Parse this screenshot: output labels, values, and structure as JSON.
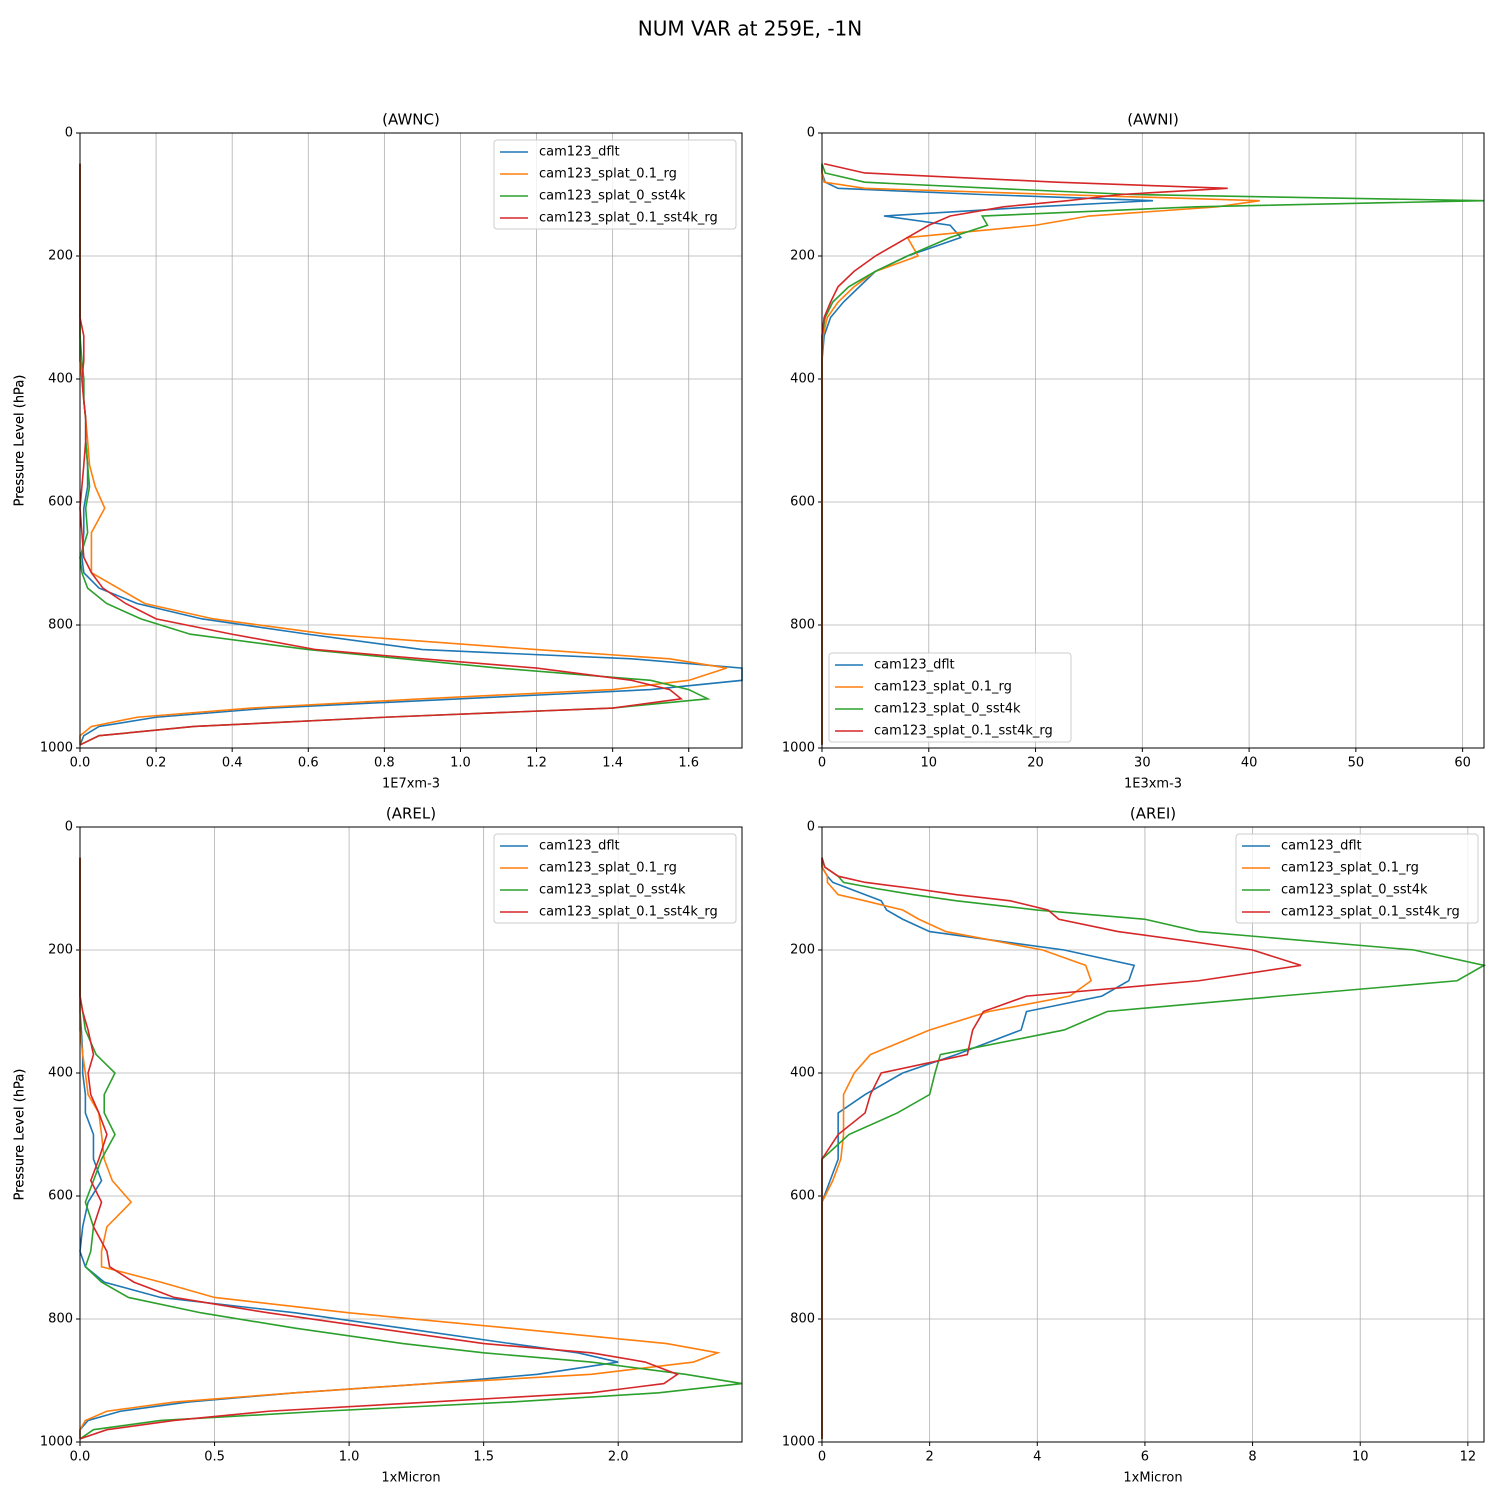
{
  "title": "NUM VAR at 259E, -1N",
  "chart_data": [
    {
      "type": "line",
      "title": "(AWNC)",
      "x_label": "1E7xm-3",
      "y_label": "Pressure Level (hPa)",
      "xlim": [
        0,
        1.74
      ],
      "ylim": [
        1000,
        0
      ],
      "xticks": [
        {
          "value": 0,
          "label": "0.0"
        },
        0.2,
        0.4,
        0.6,
        0.8,
        {
          "value": 1,
          "label": "1.0"
        },
        1.2,
        1.4,
        1.6
      ],
      "yticks": [
        0,
        200,
        400,
        600,
        800,
        1000
      ],
      "grid": true,
      "legend": "upper right",
      "y": [
        50,
        65,
        80,
        90,
        100,
        110,
        120,
        135,
        150,
        170,
        200,
        225,
        250,
        275,
        300,
        330,
        370,
        400,
        435,
        465,
        500,
        540,
        575,
        610,
        650,
        690,
        715,
        740,
        765,
        790,
        815,
        840,
        855,
        870,
        890,
        905,
        920,
        935,
        950,
        965,
        980,
        995
      ],
      "series": [
        {
          "name": "cam123_dflt",
          "color": "#1f77b4",
          "values": [
            0,
            0,
            0,
            0,
            0,
            0,
            0,
            0,
            0,
            0,
            0,
            0,
            0,
            0,
            0,
            0,
            0,
            0.01,
            0.01,
            0.015,
            0.015,
            0.02,
            0.02,
            0.01,
            0.01,
            0.005,
            0.01,
            0.05,
            0.15,
            0.32,
            0.6,
            0.9,
            1.45,
            1.74,
            1.74,
            1.5,
            1.0,
            0.5,
            0.2,
            0.05,
            0.01,
            0
          ]
        },
        {
          "name": "cam123_splat_0.1_rg",
          "color": "#ff7f0e",
          "values": [
            0,
            0,
            0,
            0,
            0,
            0,
            0,
            0,
            0,
            0,
            0,
            0,
            0,
            0,
            0,
            0,
            0,
            0.005,
            0.01,
            0.015,
            0.02,
            0.025,
            0.04,
            0.065,
            0.03,
            0.03,
            0.03,
            0.1,
            0.17,
            0.35,
            0.65,
            1.2,
            1.55,
            1.7,
            1.6,
            1.4,
            0.9,
            0.45,
            0.15,
            0.03,
            0,
            0
          ]
        },
        {
          "name": "cam123_splat_0_sst4k",
          "color": "#2ca02c",
          "values": [
            0,
            0,
            0,
            0,
            0,
            0,
            0,
            0,
            0,
            0,
            0,
            0,
            0,
            0,
            0,
            0,
            0.005,
            0.01,
            0.01,
            0.015,
            0.015,
            0.02,
            0.025,
            0.015,
            0.02,
            0,
            0.005,
            0.02,
            0.07,
            0.16,
            0.29,
            0.6,
            0.85,
            1.1,
            1.5,
            1.6,
            1.65,
            1.4,
            0.8,
            0.3,
            0.05,
            0
          ]
        },
        {
          "name": "cam123_splat_0.1_sst4k_rg",
          "color": "#d62728",
          "values": [
            0,
            0,
            0,
            0,
            0,
            0,
            0,
            0,
            0,
            0,
            0,
            0,
            0,
            0,
            0,
            0.01,
            0.01,
            0.005,
            0.01,
            0.015,
            0.015,
            0.01,
            0.005,
            0,
            0.005,
            0.01,
            0.03,
            0.06,
            0.12,
            0.2,
            0.4,
            0.62,
            0.9,
            1.2,
            1.45,
            1.55,
            1.58,
            1.4,
            0.8,
            0.3,
            0.05,
            0
          ]
        }
      ]
    },
    {
      "type": "line",
      "title": "(AWNI)",
      "x_label": "1E3xm-3",
      "y_label": "Pressure Level (hPa)",
      "xlim": [
        0,
        62
      ],
      "ylim": [
        1000,
        0
      ],
      "xticks": [
        0,
        10,
        20,
        30,
        40,
        50,
        60
      ],
      "yticks": [
        0,
        200,
        400,
        600,
        800,
        1000
      ],
      "grid": true,
      "legend": "lower left",
      "y": [
        50,
        65,
        80,
        90,
        100,
        110,
        120,
        135,
        150,
        170,
        200,
        225,
        250,
        275,
        300,
        330,
        370,
        400,
        435,
        465,
        500,
        540,
        575,
        610,
        650,
        690,
        715,
        740,
        765,
        790,
        815,
        840,
        855,
        870,
        890,
        905,
        920,
        935,
        950,
        965,
        980,
        995
      ],
      "series": [
        {
          "name": "cam123_dflt",
          "color": "#1f77b4",
          "values": [
            0,
            0,
            0.3,
            1.5,
            15,
            31,
            20,
            5.8,
            12,
            13,
            8,
            5,
            3.5,
            2,
            0.8,
            0.2,
            0,
            0,
            0,
            0,
            0,
            0,
            0,
            0,
            0,
            0,
            0,
            0,
            0,
            0,
            0,
            0,
            0,
            0,
            0,
            0,
            0,
            0,
            0,
            0,
            0,
            0
          ]
        },
        {
          "name": "cam123_splat_0.1_rg",
          "color": "#ff7f0e",
          "values": [
            0,
            0,
            0.2,
            4,
            22,
            41,
            37,
            25,
            20,
            8,
            9,
            5,
            3,
            1.5,
            0.5,
            0.1,
            0,
            0,
            0,
            0,
            0,
            0,
            0,
            0,
            0,
            0,
            0,
            0,
            0,
            0,
            0,
            0,
            0,
            0,
            0,
            0,
            0,
            0,
            0,
            0,
            0,
            0
          ]
        },
        {
          "name": "cam123_splat_0_sst4k",
          "color": "#2ca02c",
          "values": [
            0,
            0.3,
            4,
            16,
            29,
            62,
            35,
            15,
            15.5,
            12,
            8,
            5,
            2.5,
            1,
            0.3,
            0,
            0,
            0,
            0,
            0,
            0,
            0,
            0,
            0,
            0,
            0,
            0,
            0,
            0,
            0,
            0,
            0,
            0,
            0,
            0,
            0,
            0,
            0,
            0,
            0,
            0,
            0
          ]
        },
        {
          "name": "cam123_splat_0.1_sst4k_rg",
          "color": "#d62728",
          "values": [
            0.2,
            4,
            22,
            38,
            28,
            23,
            17,
            12,
            10,
            8,
            5,
            3,
            1.5,
            0.8,
            0.2,
            0,
            0,
            0,
            0,
            0,
            0,
            0,
            0,
            0,
            0,
            0,
            0,
            0,
            0,
            0,
            0,
            0,
            0,
            0,
            0,
            0,
            0,
            0,
            0,
            0,
            0,
            0
          ]
        }
      ]
    },
    {
      "type": "line",
      "title": "(AREL)",
      "x_label": "1xMicron",
      "y_label": "Pressure Level (hPa)",
      "xlim": [
        0,
        2.46
      ],
      "ylim": [
        1000,
        0
      ],
      "xticks": [
        {
          "value": 0,
          "label": "0.0"
        },
        0.5,
        {
          "value": 1,
          "label": "1.0"
        },
        1.5,
        {
          "value": 2,
          "label": "2.0"
        }
      ],
      "yticks": [
        0,
        200,
        400,
        600,
        800,
        1000
      ],
      "grid": true,
      "legend": "upper right",
      "y": [
        50,
        65,
        80,
        90,
        100,
        110,
        120,
        135,
        150,
        170,
        200,
        225,
        250,
        275,
        300,
        330,
        370,
        400,
        435,
        465,
        500,
        540,
        575,
        610,
        650,
        690,
        715,
        740,
        765,
        790,
        815,
        840,
        855,
        870,
        890,
        905,
        920,
        935,
        950,
        965,
        980,
        995
      ],
      "series": [
        {
          "name": "cam123_dflt",
          "color": "#1f77b4",
          "values": [
            0,
            0,
            0,
            0,
            0,
            0,
            0,
            0,
            0,
            0,
            0,
            0,
            0,
            0,
            0,
            0.005,
            0.01,
            0.01,
            0.02,
            0.02,
            0.05,
            0.05,
            0.08,
            0.03,
            0.01,
            0,
            0.02,
            0.09,
            0.3,
            0.8,
            1.2,
            1.6,
            1.85,
            2.0,
            1.7,
            1.3,
            0.8,
            0.4,
            0.15,
            0.03,
            0,
            0
          ]
        },
        {
          "name": "cam123_splat_0.1_rg",
          "color": "#ff7f0e",
          "values": [
            0,
            0,
            0,
            0,
            0,
            0,
            0,
            0,
            0,
            0,
            0,
            0,
            0,
            0,
            0,
            0,
            0.01,
            0.02,
            0.03,
            0.07,
            0.08,
            0.09,
            0.12,
            0.19,
            0.1,
            0.08,
            0.08,
            0.3,
            0.5,
            1.0,
            1.6,
            2.18,
            2.37,
            2.28,
            1.9,
            1.3,
            0.8,
            0.35,
            0.1,
            0.02,
            0,
            0
          ]
        },
        {
          "name": "cam123_splat_0_sst4k",
          "color": "#2ca02c",
          "values": [
            0,
            0,
            0,
            0,
            0,
            0,
            0,
            0,
            0,
            0,
            0,
            0,
            0,
            0,
            0.01,
            0.02,
            0.06,
            0.13,
            0.09,
            0.09,
            0.13,
            0.08,
            0.05,
            0.02,
            0.05,
            0.04,
            0.02,
            0.08,
            0.18,
            0.45,
            0.8,
            1.2,
            1.5,
            1.9,
            2.25,
            2.46,
            2.15,
            1.6,
            0.9,
            0.3,
            0.05,
            0
          ]
        },
        {
          "name": "cam123_splat_0.1_sst4k_rg",
          "color": "#d62728",
          "values": [
            0,
            0,
            0,
            0,
            0,
            0,
            0,
            0,
            0,
            0,
            0,
            0,
            0,
            0,
            0.01,
            0.03,
            0.05,
            0.03,
            0.04,
            0.07,
            0.1,
            0.07,
            0.04,
            0.08,
            0.05,
            0.1,
            0.11,
            0.2,
            0.35,
            0.7,
            1.1,
            1.5,
            1.9,
            2.1,
            2.22,
            2.17,
            1.9,
            1.3,
            0.7,
            0.35,
            0.1,
            0
          ]
        }
      ]
    },
    {
      "type": "line",
      "title": "(AREI)",
      "x_label": "1xMicron",
      "y_label": "Pressure Level (hPa)",
      "xlim": [
        0,
        12.3
      ],
      "ylim": [
        1000,
        0
      ],
      "xticks": [
        0,
        2,
        4,
        6,
        8,
        10,
        12
      ],
      "yticks": [
        0,
        200,
        400,
        600,
        800,
        1000
      ],
      "grid": true,
      "legend": "upper right",
      "y": [
        50,
        65,
        80,
        90,
        100,
        110,
        120,
        135,
        150,
        170,
        200,
        225,
        250,
        275,
        300,
        330,
        370,
        400,
        435,
        465,
        500,
        540,
        575,
        610,
        650,
        690,
        715,
        740,
        765,
        790,
        815,
        840,
        855,
        870,
        890,
        905,
        920,
        935,
        950,
        965,
        980,
        995
      ],
      "series": [
        {
          "name": "cam123_dflt",
          "color": "#1f77b4",
          "values": [
            0,
            0,
            0.1,
            0.2,
            0.5,
            0.8,
            1.1,
            1.2,
            1.5,
            2,
            4.5,
            5.8,
            5.7,
            5.2,
            3.8,
            3.7,
            2.5,
            1.5,
            0.8,
            0.3,
            0.3,
            0.3,
            0.15,
            0,
            0,
            0,
            0,
            0,
            0,
            0,
            0,
            0,
            0,
            0,
            0,
            0,
            0,
            0,
            0,
            0,
            0,
            0
          ]
        },
        {
          "name": "cam123_splat_0.1_rg",
          "color": "#ff7f0e",
          "values": [
            0,
            0,
            0.1,
            0.1,
            0.2,
            0.3,
            0.8,
            1.5,
            1.8,
            2.3,
            4.1,
            4.9,
            5.0,
            4.6,
            3.1,
            2,
            0.9,
            0.6,
            0.4,
            0.4,
            0.4,
            0.35,
            0.2,
            0,
            0,
            0,
            0,
            0,
            0,
            0,
            0,
            0,
            0,
            0,
            0,
            0,
            0,
            0,
            0,
            0,
            0,
            0
          ]
        },
        {
          "name": "cam123_splat_0_sst4k",
          "color": "#2ca02c",
          "values": [
            0,
            0.05,
            0.3,
            0.4,
            1,
            1.7,
            2.5,
            4,
            6,
            7,
            11,
            12.3,
            11.8,
            8.5,
            5.3,
            4.5,
            2.2,
            2.1,
            2.0,
            1.4,
            0.5,
            0,
            0,
            0,
            0,
            0,
            0,
            0,
            0,
            0,
            0,
            0,
            0,
            0,
            0,
            0,
            0,
            0,
            0,
            0,
            0,
            0
          ]
        },
        {
          "name": "cam123_splat_0.1_sst4k_rg",
          "color": "#d62728",
          "values": [
            0,
            0.05,
            0.3,
            0.8,
            1.7,
            2.5,
            3.5,
            4.2,
            4.4,
            5.5,
            8,
            8.9,
            7,
            3.8,
            3.0,
            2.8,
            2.7,
            1.1,
            0.9,
            0.8,
            0.3,
            0,
            0,
            0,
            0,
            0,
            0,
            0,
            0,
            0,
            0,
            0,
            0,
            0,
            0,
            0,
            0,
            0,
            0,
            0,
            0,
            0
          ]
        }
      ]
    }
  ]
}
